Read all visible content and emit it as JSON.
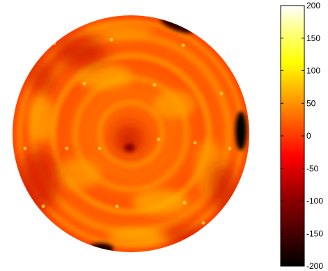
{
  "chart_data": {
    "type": "heatmap",
    "shape": "circular",
    "title": "",
    "xlabel": "",
    "ylabel": "",
    "colormap": "hot",
    "colorbar": {
      "range": [
        -200,
        200
      ],
      "ticks": [
        200,
        150,
        100,
        50,
        0,
        -50,
        -100,
        -150,
        -200
      ],
      "tick_labels": [
        "200",
        "150",
        "100",
        "50",
        "0",
        "-50",
        "-100",
        "-150",
        "-200"
      ]
    },
    "colors": {
      "low": "#000000",
      "mid_low": "#cc0000",
      "mid": "#ff3300",
      "mid_high": "#ff9900",
      "high_mid": "#ffff00",
      "high": "#ffffff"
    },
    "features": [
      {
        "name": "dark-spot-top-right",
        "value": -160
      },
      {
        "name": "dark-spot-right-edge",
        "value": -190
      },
      {
        "name": "dark-spot-bottom-left",
        "value": -180
      },
      {
        "name": "dark-region-upper-left",
        "value": -90
      },
      {
        "name": "dark-region-lower-left",
        "value": -100
      },
      {
        "name": "center-dark",
        "value": -110
      }
    ],
    "background_value": -40
  }
}
